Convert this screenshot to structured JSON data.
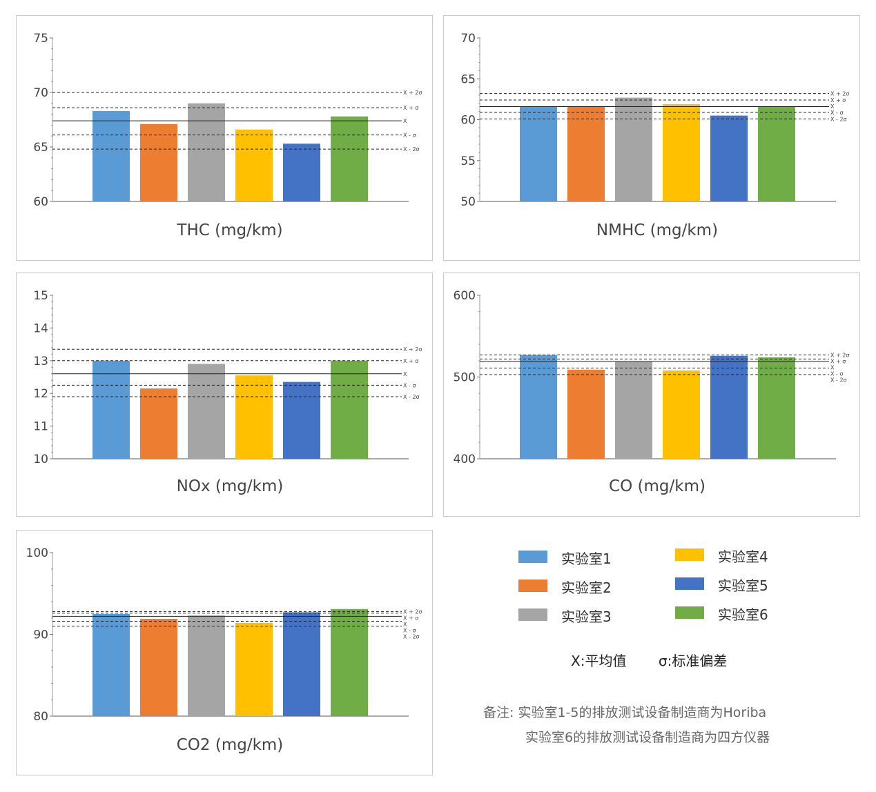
{
  "colors": [
    "#5b9bd5",
    "#ed7d31",
    "#a5a5a5",
    "#ffc000",
    "#4472c4",
    "#70ad47"
  ],
  "ref_lines": {
    "plus2": "X + 2σ",
    "plus1": "X + σ",
    "mean": "X",
    "minus1": "X - σ",
    "minus2": "X - 2σ"
  },
  "chart_data": [
    {
      "type": "bar",
      "title": "THC (mg/km)",
      "ylim": [
        60,
        75
      ],
      "yticks": [
        60,
        65,
        70,
        75
      ],
      "values": [
        68.3,
        67.1,
        69.0,
        66.6,
        65.3,
        67.8
      ],
      "lines": {
        "plus2": 70.0,
        "plus1": 68.6,
        "mean": 67.4,
        "minus1": 66.1,
        "minus2": 64.8
      }
    },
    {
      "type": "bar",
      "title": "NMHC (mg/km)",
      "ylim": [
        50,
        70
      ],
      "yticks": [
        50,
        55,
        60,
        65,
        70
      ],
      "values": [
        61.6,
        61.6,
        62.7,
        61.9,
        60.5,
        61.6
      ],
      "lines": {
        "plus2": 63.2,
        "plus1": 62.4,
        "mean": 61.6,
        "minus1": 60.9,
        "minus2": 60.1
      }
    },
    {
      "type": "bar",
      "title": "NOx (mg/km)",
      "ylim": [
        10,
        15
      ],
      "yticks": [
        10,
        11,
        12,
        13,
        14,
        15
      ],
      "values": [
        13.0,
        12.15,
        12.9,
        12.55,
        12.35,
        13.0
      ],
      "lines": {
        "plus2": 13.35,
        "plus1": 13.0,
        "mean": 12.6,
        "minus1": 12.25,
        "minus2": 11.9
      }
    },
    {
      "type": "bar",
      "title": "CO (mg/km)",
      "ylim": [
        400,
        600
      ],
      "yticks": [
        400,
        500,
        600
      ],
      "values": [
        527,
        509,
        519,
        508,
        526,
        524
      ],
      "lines": {
        "plus2": 527,
        "plus1": 522,
        "mean": 519,
        "minus1": 511,
        "minus2": 503
      }
    },
    {
      "type": "bar",
      "title": "CO2 (mg/km)",
      "ylim": [
        80,
        100
      ],
      "yticks": [
        80,
        90,
        100
      ],
      "values": [
        92.5,
        91.9,
        92.3,
        91.4,
        92.7,
        93.1
      ],
      "lines": {
        "plus2": 92.8,
        "plus1": 92.6,
        "mean": 92.2,
        "minus1": 91.6,
        "minus2": 91.0
      }
    }
  ],
  "legend": {
    "items": [
      "实验室1",
      "实验室2",
      "实验室3",
      "实验室4",
      "实验室5",
      "实验室6"
    ]
  },
  "definitions": {
    "mean": "X:平均值",
    "sigma": "σ:标准偏差"
  },
  "note": {
    "line1": "备注: 实验室1-5的排放测试设备制造商为Horiba",
    "line2": "实验室6的排放测试设备制造商为四方仪器"
  }
}
